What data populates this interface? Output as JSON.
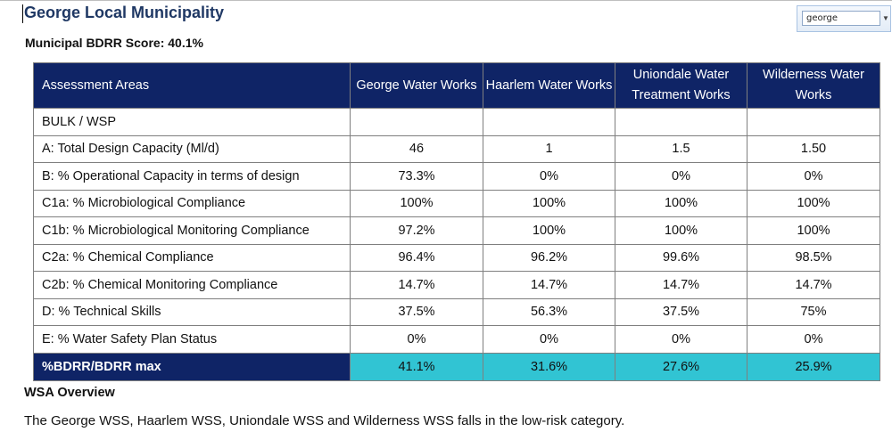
{
  "header": {
    "title": "George Local Municipality",
    "score_label": "Municipal BDRR Score: 40.1%"
  },
  "search": {
    "value": "george"
  },
  "table": {
    "columns": [
      "Assessment Areas",
      "George Water Works",
      "Haarlem Water Works",
      "Uniondale Water Treatment Works",
      "Wilderness Water Works"
    ],
    "rows": [
      {
        "label": "BULK / WSP",
        "values": [
          "",
          "",
          "",
          ""
        ]
      },
      {
        "label": "A: Total Design Capacity (Ml/d)",
        "values": [
          "46",
          "1",
          "1.5",
          "1.50"
        ]
      },
      {
        "label": "B: % Operational Capacity in terms of design",
        "values": [
          "73.3%",
          "0%",
          "0%",
          "0%"
        ]
      },
      {
        "label": "C1a: % Microbiological Compliance",
        "values": [
          "100%",
          "100%",
          "100%",
          "100%"
        ]
      },
      {
        "label": "C1b: % Microbiological Monitoring Compliance",
        "values": [
          "97.2%",
          "100%",
          "100%",
          "100%"
        ]
      },
      {
        "label": "C2a: % Chemical Compliance",
        "values": [
          "96.4%",
          "96.2%",
          "99.6%",
          "98.5%"
        ]
      },
      {
        "label": "C2b: % Chemical Monitoring Compliance",
        "values": [
          "14.7%",
          "14.7%",
          "14.7%",
          "14.7%"
        ]
      },
      {
        "label": "D: % Technical Skills",
        "values": [
          "37.5%",
          "56.3%",
          "37.5%",
          "75%"
        ]
      },
      {
        "label": "E: % Water Safety Plan Status",
        "values": [
          "0%",
          "0%",
          "0%",
          "0%"
        ]
      }
    ],
    "footer": {
      "label": "%BDRR/BDRR max",
      "values": [
        "41.1%",
        "31.6%",
        "27.6%",
        "25.9%"
      ]
    }
  },
  "overview": {
    "heading": "WSA Overview",
    "text": "The George WSS, Haarlem WSS, Uniondale WSS and Wilderness WSS falls in the low-risk category."
  },
  "colors": {
    "header_bg": "#0f2466",
    "footer_value_bg": "#31c4d3",
    "title_color": "#1f3864"
  }
}
